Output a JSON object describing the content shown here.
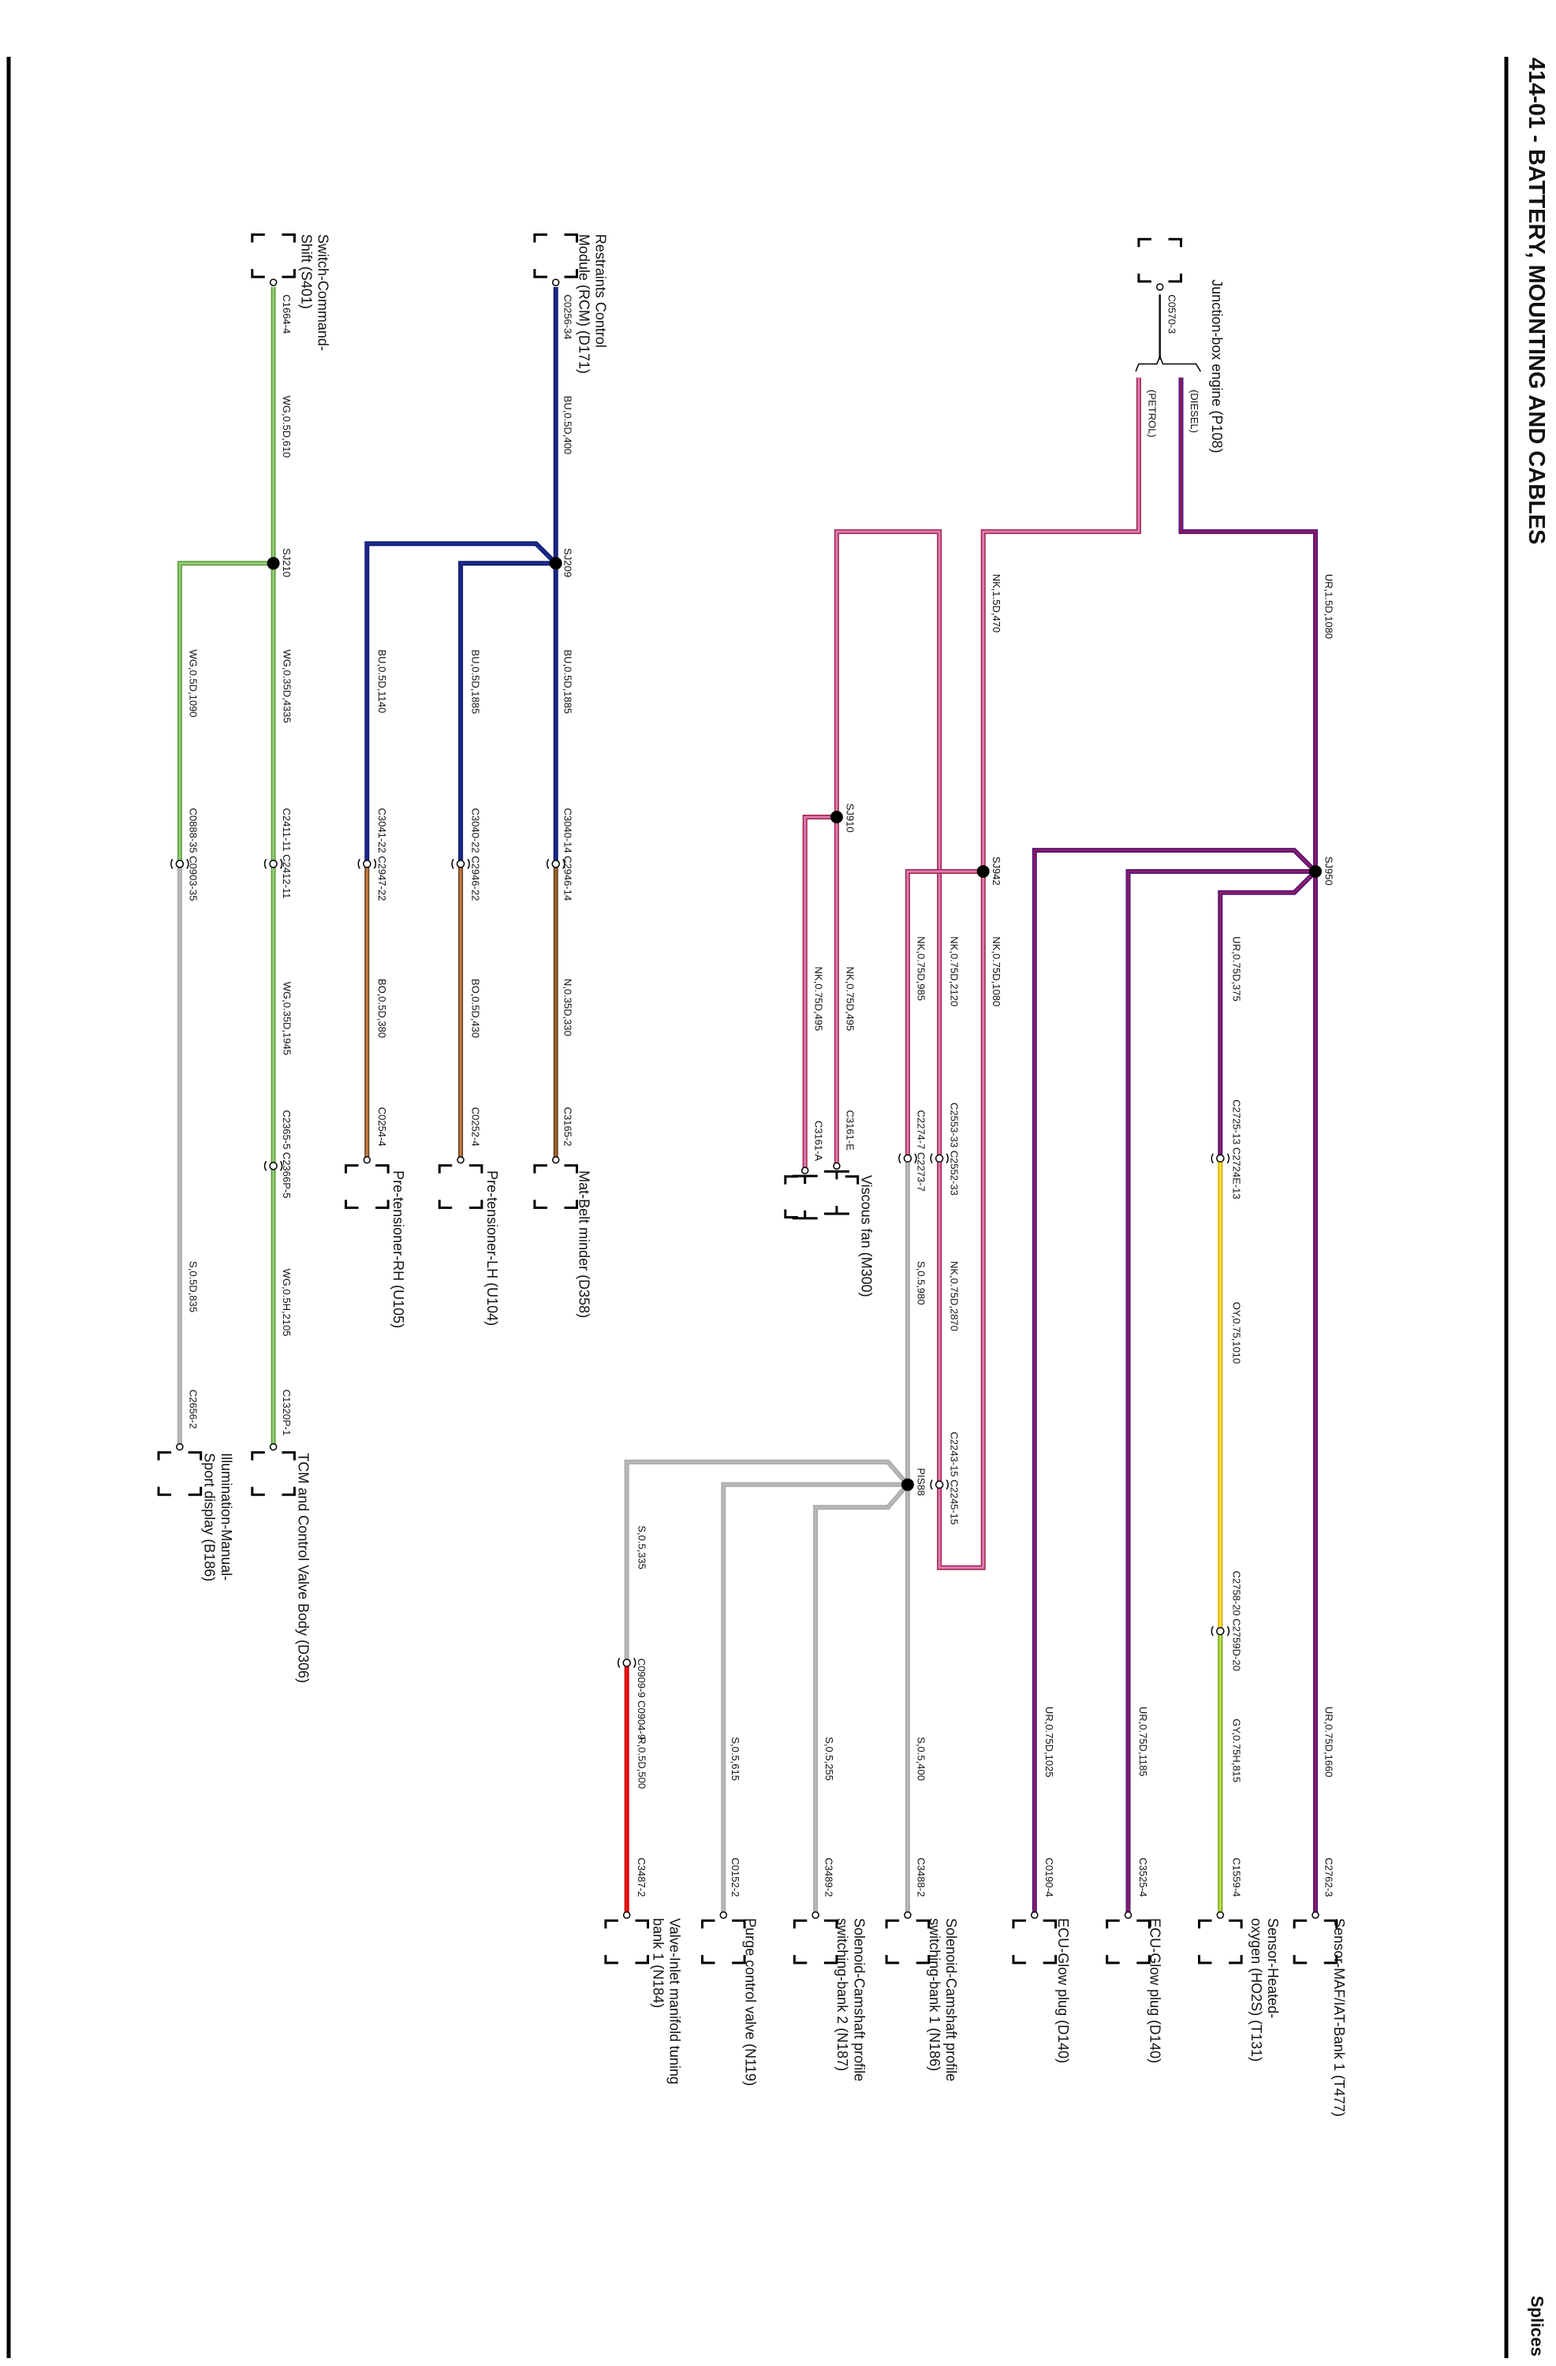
{
  "header": {
    "title": "414-01 - BATTERY, MOUNTING AND CABLES",
    "section": "Splices"
  },
  "components": {
    "junction_box": [
      "Junction-box engine (P108)"
    ],
    "maf_sensor": [
      "Sensor-MAF/IAT-Bank 1 (T477)"
    ],
    "ho2s_sensor": [
      "Sensor-Heated-",
      "oxygen (HO2S) (T131)"
    ],
    "glow_plug_1": [
      "ECU-Glow plug (D140)"
    ],
    "glow_plug_2": [
      "ECU-Glow plug (D140)"
    ],
    "camshaft_bank1": [
      "Solenoid-Camshaft profile",
      "switching-bank 1 (N186)"
    ],
    "camshaft_bank2": [
      "Solenoid-Camshaft profile",
      "switching-bank 2 (N187)"
    ],
    "purge_valve": [
      "Purge control valve (N119)"
    ],
    "inlet_valve": [
      "Valve-Inlet manifold tuning",
      "bank 1 (N184)"
    ],
    "viscous_fan": [
      "Viscous fan (M300)"
    ],
    "rcm": [
      "Restraints Control",
      "Module (RCM) (D171)"
    ],
    "mat_belt_minder": [
      "Mat-Belt minder (D358)"
    ],
    "pretensioner_lh": [
      "Pre-tensioner-LH (U104)"
    ],
    "pretensioner_rh": [
      "Pre-tensioner-RH (U105)"
    ],
    "switch_shift": [
      "Switch-Command-",
      "Shift (S401)"
    ],
    "tcm": [
      "TCM and Control Valve Body (D306)"
    ],
    "illumination": [
      "Illumination-Manual-",
      "Sport display (B186)"
    ]
  },
  "variants": {
    "diesel": "(DIESEL)",
    "petrol": "(PETROL)"
  },
  "splices": {
    "sj950": "SJ950",
    "sj942": "SJ942",
    "sj910": "SJ910",
    "pis88": "PIS88",
    "sj209": "SJ209",
    "sj210": "SJ210"
  },
  "connectors": {
    "c0570": "C0570-3",
    "c2725": "C2725-13 C2724E-13",
    "c2553": "C2553-33 C2552-33",
    "c2274": "C2274-7 C2273-7",
    "c3161e": "C3161-E",
    "c3161a": "C3161-A",
    "c2243": "C2243-15 C2245-15",
    "c2758": "C2758-20 C2759D-20",
    "c0909": "C0909-9 C0904-9",
    "c2762": "C2762-3",
    "c1559": "C1559-4",
    "c3525": "C3525-4",
    "c0190": "C0190-4",
    "c3488": "C3488-2",
    "c3489": "C3489-2",
    "c0152": "C0152-2",
    "c3487": "C3487-2",
    "c0256": "C0256-34",
    "c3040_14": "C3040-14 C2946-14",
    "c3040_22": "C3040-22 C2946-22",
    "c3041": "C3041-22 C2947-22",
    "c3165": "C3165-2",
    "c0252": "C0252-4",
    "c0254": "C0254-4",
    "c1664": "C1664-4",
    "c2411": "C2411-11 C2412-11",
    "c0888": "C0888-35 C0903-35",
    "c2365": "C2365-5 C2366P-5",
    "c1320": "C1320P-1",
    "c2656": "C2656-2"
  },
  "wires": {
    "ur_1080": "UR,1.5D,1080",
    "nk_470": "NK,1.5D,470",
    "ur_375": "UR,0.75D,375",
    "nk_1080": "NK,0.75D,1080",
    "nk_2120": "NK,0.75D,2120",
    "nk_985": "NK,0.75D,985",
    "nk_495a": "NK,0.75D,495",
    "nk_495b": "NK,0.75D,495",
    "oy_1010": "OY,0.75,1010",
    "nk_2870": "NK,0.75D,2870",
    "s_980": "S,0.5,980",
    "gy_815": "GY,0.75H,815",
    "ur_1660": "UR,0.75D,1660",
    "ur_1185": "UR,0.75D,1185",
    "ur_1025": "UR,0.75D,1025",
    "s_400": "S,0.5,400",
    "s_255": "S,0.5,255",
    "s_615": "S,0.5,615",
    "s_335": "S,0.5,335",
    "r_500": "R,0.5D,500",
    "bu_400": "BU,0.5D,400",
    "bu_1885a": "BU,0.5D,1885",
    "bu_1885b": "BU,0.5D,1885",
    "bu_1140": "BU,0.5D,1140",
    "n_330": "N,0.35D,330",
    "bo_430": "BO,0.5D,430",
    "bo_380": "BO,0.5D,380",
    "wg_610": "WG,0.5D,610",
    "wg_4335": "WG,0.35D,4335",
    "wg_1090": "WG,0.5D,1090",
    "wg_1945": "WG,0.35D,1945",
    "wg_2105": "WG,0.5H,2105",
    "s_835": "S,0.5D,835"
  },
  "wire_colors": {
    "UR": [
      "#4a1486",
      "#8e1b5e"
    ],
    "NK": [
      "#9c2448",
      "#e07ab4"
    ],
    "BU": [
      "#0d1a6e",
      "#1a2a8a"
    ],
    "N": [
      "#6b4420",
      "#9a6030"
    ],
    "BO": [
      "#5a3a1a",
      "#c87a44"
    ],
    "WG": [
      "#5e9c3e",
      "#92cc74"
    ],
    "GY": [
      "#6aa018",
      "#bfe444"
    ],
    "OY": [
      "#d8a400",
      "#ffe23a"
    ],
    "S": [
      "#a8a8a8",
      "#b8b8b8"
    ],
    "R": [
      "#cc0000",
      "#f01010"
    ],
    "K": [
      "#111111",
      "#111111"
    ]
  }
}
